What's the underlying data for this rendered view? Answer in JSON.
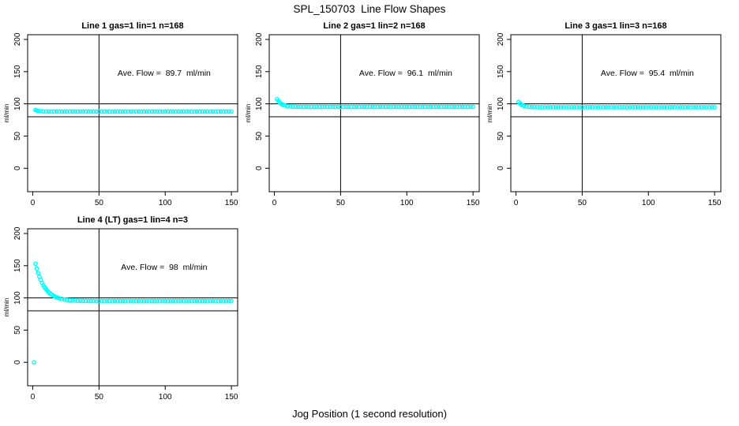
{
  "main_title": "SPL_150703  Line Flow Shapes",
  "x_axis_label": "Jog Position (1 second resolution)",
  "colors": {
    "points": "#00ffff",
    "axis": "#000000",
    "background": "#ffffff"
  },
  "chart_data": [
    {
      "type": "scatter",
      "title": "Line 1 gas=1 lin=1 n=168",
      "annotation": "Ave. Flow =  89.7  ml/min",
      "ave_flow_ml_min": 89.7,
      "ylabel": "ml/min",
      "x_ticks": [
        0,
        50,
        100,
        150
      ],
      "y_ticks": [
        0,
        50,
        100,
        150,
        200
      ],
      "xlim": [
        -3.9,
        154.7
      ],
      "ylim": [
        -36.4,
        207.3
      ],
      "ref_line_x": 50,
      "ref_lines_y": [
        100,
        80
      ],
      "points_head": [
        [
          2,
          90.5
        ],
        [
          3,
          89.6
        ],
        [
          4,
          89.1
        ],
        [
          6,
          88.5
        ],
        [
          8,
          88.2
        ],
        [
          10,
          88.1
        ]
      ],
      "points_tail": {
        "x_from": 12,
        "x_to": 150,
        "x_step": 2,
        "y": 88.0
      },
      "outliers": []
    },
    {
      "type": "scatter",
      "title": "Line 2 gas=1 lin=2 n=168",
      "annotation": "Ave. Flow =  96.1  ml/min",
      "ave_flow_ml_min": 96.1,
      "ylabel": "ml/min",
      "x_ticks": [
        0,
        50,
        100,
        150
      ],
      "y_ticks": [
        0,
        50,
        100,
        150,
        200
      ],
      "xlim": [
        -3.9,
        154.7
      ],
      "ylim": [
        -36.4,
        207.3
      ],
      "ref_line_x": 50,
      "ref_lines_y": [
        100,
        80
      ],
      "points_head": [
        [
          2,
          107.2
        ],
        [
          3,
          104.3
        ],
        [
          4,
          102.0
        ],
        [
          5,
          100.3
        ],
        [
          6,
          99.0
        ],
        [
          7,
          98.1
        ],
        [
          8,
          97.4
        ],
        [
          10,
          96.4
        ],
        [
          12,
          95.9
        ],
        [
          14,
          95.6
        ],
        [
          16,
          95.4
        ],
        [
          18,
          95.3
        ]
      ],
      "points_tail": {
        "x_from": 20,
        "x_to": 150,
        "x_step": 2,
        "y": 95.2
      },
      "outliers": []
    },
    {
      "type": "scatter",
      "title": "Line 3 gas=1 lin=3 n=168",
      "annotation": "Ave. Flow =  95.4  ml/min",
      "ave_flow_ml_min": 95.4,
      "ylabel": "ml/min",
      "x_ticks": [
        0,
        50,
        100,
        150
      ],
      "y_ticks": [
        0,
        50,
        100,
        150,
        200
      ],
      "xlim": [
        -3.9,
        154.7
      ],
      "ylim": [
        -36.4,
        207.3
      ],
      "ref_line_x": 50,
      "ref_lines_y": [
        100,
        80
      ],
      "points_head": [
        [
          2,
          102.8
        ],
        [
          3,
          100.6
        ],
        [
          4,
          98.9
        ],
        [
          5,
          97.7
        ],
        [
          6,
          96.8
        ],
        [
          8,
          95.8
        ],
        [
          10,
          95.3
        ],
        [
          12,
          95.0
        ],
        [
          14,
          94.9
        ]
      ],
      "points_tail": {
        "x_from": 16,
        "x_to": 150,
        "x_step": 2,
        "y": 94.8
      },
      "outliers": []
    },
    {
      "type": "scatter",
      "title": "Line 4 (LT) gas=1 lin=4 n=3",
      "annotation": "Ave. Flow =  98  ml/min",
      "ave_flow_ml_min": 98,
      "ylabel": "ml/min",
      "x_ticks": [
        0,
        50,
        100,
        150
      ],
      "y_ticks": [
        0,
        50,
        100,
        150,
        200
      ],
      "xlim": [
        -3.9,
        154.7
      ],
      "ylim": [
        -36.4,
        207.3
      ],
      "ref_line_x": 50,
      "ref_lines_y": [
        100,
        80
      ],
      "points_head": [
        [
          2,
          153.0
        ],
        [
          3,
          145.5
        ],
        [
          4,
          138.6
        ],
        [
          5,
          132.9
        ],
        [
          6,
          127.7
        ],
        [
          7,
          123.4
        ],
        [
          8,
          119.6
        ],
        [
          9,
          116.3
        ],
        [
          10,
          113.5
        ],
        [
          11,
          111.1
        ],
        [
          12,
          108.9
        ],
        [
          13,
          107.1
        ],
        [
          14,
          105.4
        ],
        [
          15,
          104.0
        ],
        [
          16,
          102.8
        ],
        [
          17,
          101.8
        ],
        [
          18,
          100.9
        ],
        [
          19,
          100.1
        ],
        [
          20,
          99.4
        ],
        [
          22,
          98.3
        ],
        [
          24,
          97.5
        ],
        [
          26,
          96.9
        ],
        [
          28,
          96.4
        ],
        [
          30,
          96.1
        ],
        [
          32,
          95.8
        ],
        [
          34,
          95.6
        ],
        [
          36,
          95.5
        ],
        [
          38,
          95.4
        ],
        [
          40,
          95.3
        ],
        [
          42,
          95.2
        ],
        [
          44,
          95.2
        ],
        [
          46,
          95.1
        ]
      ],
      "points_tail": {
        "x_from": 48,
        "x_to": 150,
        "x_step": 2,
        "y": 95.0
      },
      "outliers": [
        [
          1,
          0
        ]
      ]
    }
  ]
}
